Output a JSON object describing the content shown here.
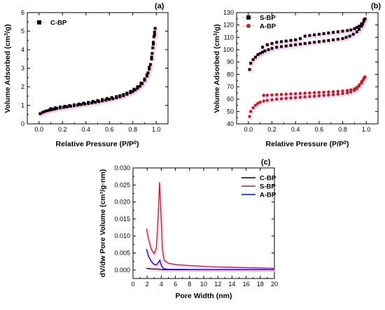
{
  "panels": {
    "a": {
      "label": "(a)"
    },
    "b": {
      "label": "(b)"
    },
    "c": {
      "label": "(c)"
    }
  },
  "colors": {
    "black": "#000000",
    "dark_red": "#a52a2a",
    "blue": "#0000ff",
    "shadow": "#ffb6e6"
  },
  "chart_data": [
    {
      "type": "scatter",
      "panel": "a",
      "xlabel": "Relative Pressure (P/P0)",
      "ylabel": "Volume Adsorbed (cm3/g)",
      "xlim": [
        -0.1,
        1.1
      ],
      "ylim": [
        0,
        6
      ],
      "xticks": [
        "0.0",
        "0.2",
        "0.4",
        "0.6",
        "0.8",
        "1.0"
      ],
      "yticks": [
        "0",
        "1",
        "2",
        "3",
        "4",
        "5",
        "6"
      ],
      "legend": {
        "placement": "top-left"
      },
      "series": [
        {
          "name": "C-BP",
          "marker": "square",
          "color": "#000000",
          "points": [
            [
              0.01,
              0.55
            ],
            [
              0.03,
              0.62
            ],
            [
              0.05,
              0.67
            ],
            [
              0.07,
              0.71
            ],
            [
              0.09,
              0.74
            ],
            [
              0.11,
              0.77
            ],
            [
              0.13,
              0.8
            ],
            [
              0.15,
              0.83
            ],
            [
              0.18,
              0.86
            ],
            [
              0.21,
              0.89
            ],
            [
              0.24,
              0.92
            ],
            [
              0.27,
              0.95
            ],
            [
              0.3,
              0.98
            ],
            [
              0.33,
              1.01
            ],
            [
              0.36,
              1.04
            ],
            [
              0.39,
              1.07
            ],
            [
              0.42,
              1.1
            ],
            [
              0.45,
              1.13
            ],
            [
              0.48,
              1.16
            ],
            [
              0.51,
              1.2
            ],
            [
              0.54,
              1.24
            ],
            [
              0.57,
              1.28
            ],
            [
              0.6,
              1.32
            ],
            [
              0.63,
              1.36
            ],
            [
              0.66,
              1.41
            ],
            [
              0.69,
              1.46
            ],
            [
              0.72,
              1.52
            ],
            [
              0.75,
              1.6
            ],
            [
              0.78,
              1.68
            ],
            [
              0.8,
              1.75
            ],
            [
              0.82,
              1.83
            ],
            [
              0.84,
              1.92
            ],
            [
              0.86,
              2.03
            ],
            [
              0.88,
              2.17
            ],
            [
              0.9,
              2.35
            ],
            [
              0.92,
              2.58
            ],
            [
              0.93,
              2.75
            ],
            [
              0.94,
              2.95
            ],
            [
              0.95,
              3.2
            ],
            [
              0.96,
              3.5
            ],
            [
              0.965,
              3.8
            ],
            [
              0.97,
              4.1
            ],
            [
              0.975,
              4.4
            ],
            [
              0.98,
              4.7
            ],
            [
              0.985,
              4.95
            ],
            [
              0.99,
              5.15
            ],
            [
              0.985,
              4.8
            ],
            [
              0.975,
              4.3
            ],
            [
              0.96,
              3.6
            ],
            [
              0.94,
              3.05
            ],
            [
              0.92,
              2.65
            ],
            [
              0.9,
              2.42
            ],
            [
              0.87,
              2.2
            ],
            [
              0.84,
              2.0
            ],
            [
              0.81,
              1.87
            ],
            [
              0.78,
              1.75
            ],
            [
              0.75,
              1.66
            ],
            [
              0.72,
              1.58
            ],
            [
              0.69,
              1.52
            ],
            [
              0.66,
              1.47
            ],
            [
              0.62,
              1.42
            ],
            [
              0.58,
              1.37
            ],
            [
              0.54,
              1.31
            ],
            [
              0.5,
              1.26
            ],
            [
              0.46,
              1.21
            ],
            [
              0.42,
              1.16
            ],
            [
              0.38,
              1.12
            ],
            [
              0.34,
              1.07
            ],
            [
              0.3,
              1.03
            ],
            [
              0.26,
              0.99
            ],
            [
              0.22,
              0.95
            ],
            [
              0.18,
              0.91
            ],
            [
              0.14,
              0.87
            ],
            [
              0.1,
              0.82
            ]
          ]
        }
      ]
    },
    {
      "type": "scatter",
      "panel": "b",
      "xlabel": "Relative Pressure (P/P0)",
      "ylabel": "Volume Adsorbed (cm3/g)",
      "xlim": [
        -0.1,
        1.1
      ],
      "ylim": [
        40,
        130
      ],
      "xticks": [
        "0.0",
        "0.2",
        "0.4",
        "0.6",
        "0.8",
        "1.0"
      ],
      "yticks": [
        "40",
        "50",
        "60",
        "70",
        "80",
        "90",
        "100",
        "110",
        "120",
        "130"
      ],
      "legend": {
        "placement": "top-left"
      },
      "series": [
        {
          "name": "S-BP",
          "marker": "square",
          "color": "#000000",
          "points": [
            [
              0.01,
              84
            ],
            [
              0.02,
              89
            ],
            [
              0.04,
              92
            ],
            [
              0.06,
              94
            ],
            [
              0.08,
              96
            ],
            [
              0.1,
              97
            ],
            [
              0.12,
              98
            ],
            [
              0.14,
              99
            ],
            [
              0.17,
              100
            ],
            [
              0.2,
              101
            ],
            [
              0.24,
              102
            ],
            [
              0.28,
              102.5
            ],
            [
              0.32,
              103
            ],
            [
              0.36,
              103.5
            ],
            [
              0.4,
              104
            ],
            [
              0.44,
              104.5
            ],
            [
              0.48,
              105
            ],
            [
              0.52,
              105.5
            ],
            [
              0.56,
              106
            ],
            [
              0.6,
              106.5
            ],
            [
              0.64,
              107
            ],
            [
              0.68,
              107.5
            ],
            [
              0.72,
              108
            ],
            [
              0.76,
              108.5
            ],
            [
              0.8,
              109
            ],
            [
              0.83,
              110
            ],
            [
              0.86,
              111
            ],
            [
              0.89,
              112.5
            ],
            [
              0.92,
              114.5
            ],
            [
              0.94,
              116.5
            ],
            [
              0.96,
              119
            ],
            [
              0.97,
              121
            ],
            [
              0.98,
              123
            ],
            [
              0.99,
              125
            ],
            [
              0.98,
              124
            ],
            [
              0.96,
              121
            ],
            [
              0.94,
              119
            ],
            [
              0.92,
              118
            ],
            [
              0.9,
              117
            ],
            [
              0.87,
              116
            ],
            [
              0.84,
              115.5
            ],
            [
              0.8,
              115
            ],
            [
              0.76,
              114.5
            ],
            [
              0.72,
              114
            ],
            [
              0.68,
              113.5
            ],
            [
              0.64,
              113
            ],
            [
              0.6,
              112.5
            ],
            [
              0.56,
              112
            ],
            [
              0.52,
              111.5
            ],
            [
              0.48,
              111
            ],
            [
              0.44,
              109
            ],
            [
              0.4,
              108
            ],
            [
              0.36,
              107.5
            ],
            [
              0.32,
              107
            ],
            [
              0.28,
              106.5
            ],
            [
              0.24,
              106
            ],
            [
              0.2,
              105
            ],
            [
              0.16,
              104
            ],
            [
              0.12,
              102
            ]
          ]
        },
        {
          "name": "A-BP",
          "marker": "circle",
          "color": "#a52a2a",
          "points": [
            [
              0.01,
              46
            ],
            [
              0.02,
              50
            ],
            [
              0.04,
              53
            ],
            [
              0.06,
              55
            ],
            [
              0.08,
              56.5
            ],
            [
              0.1,
              57.5
            ],
            [
              0.13,
              58.5
            ],
            [
              0.16,
              59
            ],
            [
              0.2,
              59.5
            ],
            [
              0.24,
              60
            ],
            [
              0.28,
              60.3
            ],
            [
              0.32,
              60.6
            ],
            [
              0.36,
              60.9
            ],
            [
              0.4,
              61.2
            ],
            [
              0.44,
              61.5
            ],
            [
              0.48,
              61.8
            ],
            [
              0.52,
              62.1
            ],
            [
              0.56,
              62.4
            ],
            [
              0.6,
              62.7
            ],
            [
              0.64,
              63
            ],
            [
              0.68,
              63.3
            ],
            [
              0.72,
              63.6
            ],
            [
              0.76,
              64
            ],
            [
              0.8,
              64.5
            ],
            [
              0.84,
              65
            ],
            [
              0.87,
              65.8
            ],
            [
              0.9,
              67
            ],
            [
              0.92,
              68.5
            ],
            [
              0.94,
              70.5
            ],
            [
              0.96,
              73
            ],
            [
              0.97,
              75
            ],
            [
              0.98,
              76.5
            ],
            [
              0.99,
              78
            ],
            [
              0.98,
              77
            ],
            [
              0.96,
              74
            ],
            [
              0.94,
              71.5
            ],
            [
              0.92,
              69.5
            ],
            [
              0.9,
              68.3
            ],
            [
              0.87,
              67.5
            ],
            [
              0.84,
              67
            ],
            [
              0.8,
              66.6
            ],
            [
              0.76,
              66.3
            ],
            [
              0.72,
              66
            ],
            [
              0.68,
              65.8
            ],
            [
              0.64,
              65.6
            ],
            [
              0.6,
              65.4
            ],
            [
              0.56,
              65.2
            ],
            [
              0.52,
              65
            ],
            [
              0.48,
              64.8
            ],
            [
              0.44,
              64.6
            ],
            [
              0.4,
              64.4
            ],
            [
              0.36,
              64.2
            ],
            [
              0.32,
              64
            ],
            [
              0.28,
              63.8
            ],
            [
              0.24,
              63.6
            ],
            [
              0.2,
              63.4
            ],
            [
              0.16,
              63.2
            ],
            [
              0.13,
              63
            ]
          ]
        }
      ]
    },
    {
      "type": "line",
      "panel": "c",
      "xlabel": "Pore Width (nm)",
      "ylabel": "dV/dw Pore Volume (cm³/g·nm)",
      "xlim": [
        0,
        20
      ],
      "ylim": [
        -0.0025,
        0.03
      ],
      "xticks": [
        "0",
        "2",
        "4",
        "6",
        "8",
        "10",
        "12",
        "14",
        "16",
        "18",
        "20"
      ],
      "yticks": [
        "0.000",
        "0.005",
        "0.010",
        "0.015",
        "0.020",
        "0.025",
        "0.030"
      ],
      "legend": {
        "placement": "top-right"
      },
      "series": [
        {
          "name": "C-BP",
          "color": "#000000",
          "points": [
            [
              1.9,
              0.0005
            ],
            [
              2.3,
              0.0004
            ],
            [
              2.8,
              0.0003
            ],
            [
              3.3,
              0.0003
            ],
            [
              3.8,
              0.0002
            ],
            [
              4.2,
              0.0001
            ],
            [
              5,
              0.0001
            ],
            [
              7,
              0.0001
            ],
            [
              10,
              0.0001
            ],
            [
              14,
              0.0001
            ],
            [
              20,
              0.0001
            ]
          ]
        },
        {
          "name": "S-BP",
          "color": "#a52a2a",
          "points": [
            [
              1.9,
              0.0122
            ],
            [
              2.2,
              0.009
            ],
            [
              2.6,
              0.006
            ],
            [
              3.0,
              0.0048
            ],
            [
              3.3,
              0.0065
            ],
            [
              3.55,
              0.0155
            ],
            [
              3.75,
              0.0258
            ],
            [
              3.95,
              0.017
            ],
            [
              4.15,
              0.006
            ],
            [
              4.4,
              0.0028
            ],
            [
              5,
              0.002
            ],
            [
              6,
              0.0016
            ],
            [
              8,
              0.0013
            ],
            [
              10,
              0.0011
            ],
            [
              12,
              0.0009
            ],
            [
              14,
              0.0008
            ],
            [
              16,
              0.0007
            ],
            [
              18,
              0.0006
            ],
            [
              20,
              0.0005
            ]
          ]
        },
        {
          "name": "A-BP",
          "color": "#0000ff",
          "points": [
            [
              1.9,
              0.0062
            ],
            [
              2.2,
              0.004
            ],
            [
              2.6,
              0.0025
            ],
            [
              3.0,
              0.0016
            ],
            [
              3.3,
              0.0015
            ],
            [
              3.6,
              0.0022
            ],
            [
              3.8,
              0.0029
            ],
            [
              4.0,
              0.0014
            ],
            [
              4.3,
              0.0004
            ],
            [
              5,
              0.0002
            ],
            [
              7,
              0.0002
            ],
            [
              10,
              0.0001
            ],
            [
              14,
              0.0001
            ],
            [
              20,
              0.0001
            ]
          ]
        }
      ]
    }
  ]
}
